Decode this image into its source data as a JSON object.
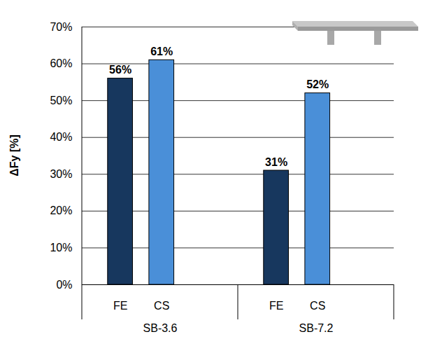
{
  "chart_data": {
    "type": "bar",
    "ylabel": "ΔFy [%]",
    "categories": [
      "SB-3.6",
      "SB-7.2"
    ],
    "series": [
      {
        "name": "FE",
        "color": "#17375e",
        "values": [
          56,
          31
        ],
        "value_labels": [
          "56%",
          "31%"
        ]
      },
      {
        "name": "CS",
        "color": "#4a8fd8",
        "values": [
          61,
          52
        ],
        "value_labels": [
          "61%",
          "52%"
        ]
      }
    ],
    "ylim": [
      0,
      70
    ],
    "yticks": [
      {
        "value": 0,
        "label": "0%"
      },
      {
        "value": 10,
        "label": "10%"
      },
      {
        "value": 20,
        "label": "20%"
      },
      {
        "value": 30,
        "label": "30%"
      },
      {
        "value": 40,
        "label": "40%"
      },
      {
        "value": 50,
        "label": "50%"
      },
      {
        "value": 60,
        "label": "60%"
      },
      {
        "value": 70,
        "label": "70%"
      }
    ],
    "grid": true,
    "data_labels": true
  }
}
